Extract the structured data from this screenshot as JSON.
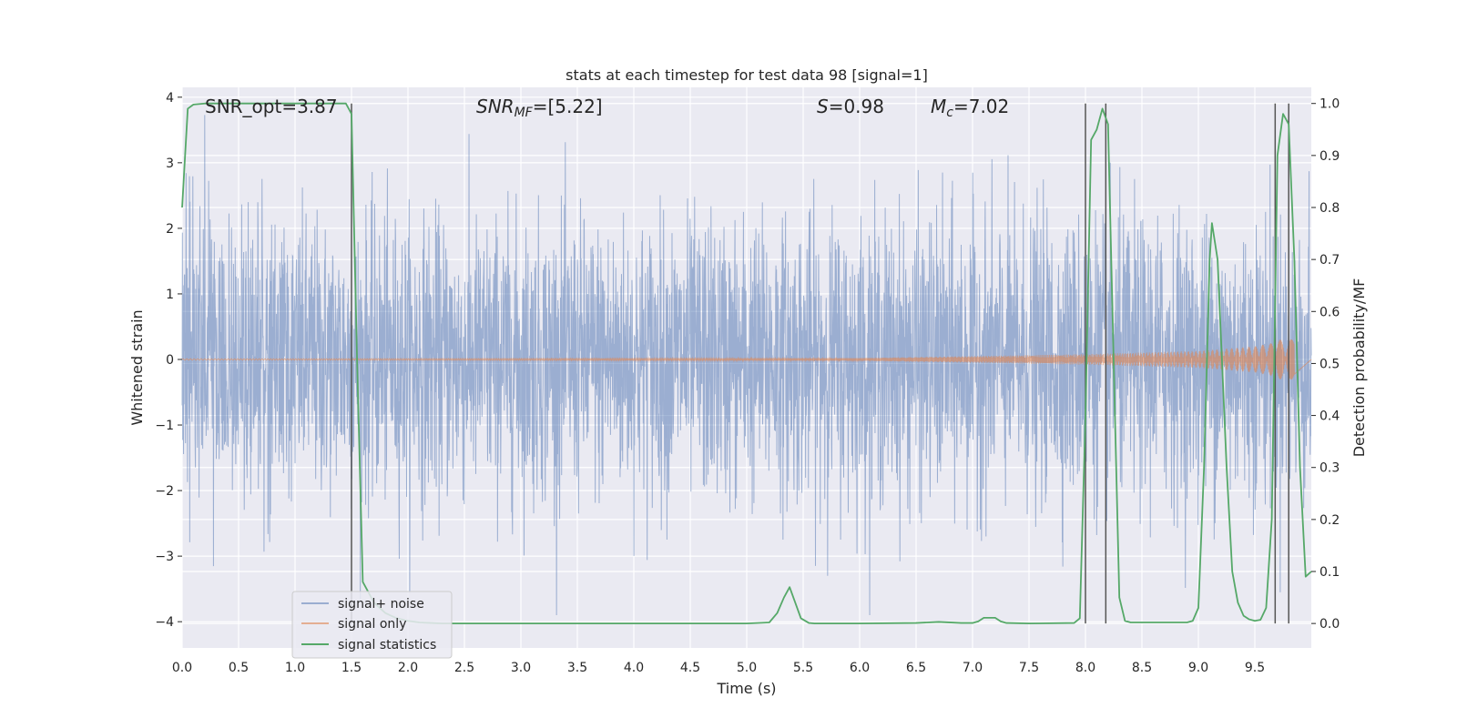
{
  "chart_data": {
    "type": "line",
    "title": "stats at each timestep for test data 98 [signal=1]",
    "xlabel": "Time (s)",
    "ylabel": "Whitened strain",
    "y2label": "Detection probability/MF",
    "xlim": [
      0,
      10
    ],
    "ylim": [
      -4.4,
      4.15
    ],
    "y2lim": [
      -0.047,
      1.031
    ],
    "xticks": [
      "0.0",
      "0.5",
      "1.0",
      "1.5",
      "2.0",
      "2.5",
      "3.0",
      "3.5",
      "4.0",
      "4.5",
      "5.0",
      "5.5",
      "6.0",
      "6.5",
      "7.0",
      "7.5",
      "8.0",
      "8.5",
      "9.0",
      "9.5"
    ],
    "xtick_values": [
      0,
      0.5,
      1,
      1.5,
      2,
      2.5,
      3,
      3.5,
      4,
      4.5,
      5,
      5.5,
      6,
      6.5,
      7,
      7.5,
      8,
      8.5,
      9,
      9.5
    ],
    "yticks": [
      "4",
      "3",
      "2",
      "1",
      "0",
      "−1",
      "−2",
      "−3",
      "−4"
    ],
    "ytick_values": [
      4,
      3,
      2,
      1,
      0,
      -1,
      -2,
      -3,
      -4
    ],
    "y2ticks": [
      "1.0",
      "0.9",
      "0.8",
      "0.7",
      "0.6",
      "0.5",
      "0.4",
      "0.3",
      "0.2",
      "0.1",
      "0.0"
    ],
    "y2tick_values": [
      1,
      0.9,
      0.8,
      0.7,
      0.6,
      0.5,
      0.4,
      0.3,
      0.2,
      0.1,
      0
    ],
    "grid": true,
    "legend_position": "lower-left",
    "annotations": {
      "snr_opt": "SNR_opt=3.87",
      "snr_mf_main": "SNR",
      "snr_mf_sub": "MF",
      "snr_mf_value": "=[5.22]",
      "s_main": "S",
      "s_value": "=0.98",
      "mc_main": "M",
      "mc_sub": "c",
      "mc_value": "=7.02"
    },
    "series": [
      {
        "name": "signal+ noise",
        "color": "#4c72b0",
        "axis": "left",
        "description_values": {
          "sigma": 1.0,
          "range": [
            -3.9,
            3.95
          ]
        }
      },
      {
        "name": "signal only",
        "color": "#dd8452",
        "axis": "left",
        "amplitude_t": [
          0,
          6,
          7,
          8,
          9,
          9.5,
          9.65,
          9.75,
          9.85
        ],
        "amplitude_values": [
          0.01,
          0.02,
          0.05,
          0.08,
          0.13,
          0.2,
          0.25,
          0.32,
          0.3
        ]
      },
      {
        "name": "signal statistics",
        "color": "#55a868",
        "axis": "right",
        "x": [
          0.0,
          0.05,
          0.1,
          0.2,
          0.3,
          0.5,
          1.0,
          1.3,
          1.45,
          1.5,
          1.55,
          1.6,
          1.7,
          1.8,
          1.9,
          2.0,
          2.1,
          2.2,
          2.3,
          2.4,
          2.5,
          3.0,
          4.0,
          5.0,
          5.2,
          5.27,
          5.33,
          5.38,
          5.43,
          5.48,
          5.55,
          5.6,
          6.0,
          6.5,
          6.7,
          6.9,
          7.0,
          7.05,
          7.1,
          7.15,
          7.2,
          7.25,
          7.3,
          7.5,
          7.9,
          7.95,
          8.0,
          8.05,
          8.1,
          8.15,
          8.2,
          8.25,
          8.3,
          8.35,
          8.4,
          8.5,
          8.9,
          8.95,
          9.0,
          9.05,
          9.1,
          9.12,
          9.17,
          9.2,
          9.25,
          9.3,
          9.35,
          9.4,
          9.45,
          9.5,
          9.55,
          9.6,
          9.65,
          9.7,
          9.75,
          9.8,
          9.85,
          9.9,
          9.95,
          10.0
        ],
        "values": [
          0.8,
          0.99,
          0.998,
          1.0,
          1.0,
          1.0,
          1.0,
          1.0,
          1.0,
          0.98,
          0.5,
          0.08,
          0.04,
          0.02,
          0.01,
          0.005,
          0.002,
          0.001,
          0.0,
          0.0,
          0.0,
          0.0,
          0.0,
          0.0,
          0.002,
          0.02,
          0.05,
          0.07,
          0.04,
          0.01,
          0.001,
          0.0,
          0.0,
          0.001,
          0.003,
          0.001,
          0.001,
          0.004,
          0.011,
          0.011,
          0.011,
          0.004,
          0.001,
          0.0,
          0.001,
          0.01,
          0.4,
          0.93,
          0.95,
          0.99,
          0.96,
          0.5,
          0.05,
          0.005,
          0.002,
          0.002,
          0.002,
          0.005,
          0.03,
          0.3,
          0.7,
          0.77,
          0.7,
          0.55,
          0.3,
          0.1,
          0.04,
          0.015,
          0.008,
          0.005,
          0.007,
          0.03,
          0.2,
          0.9,
          0.98,
          0.96,
          0.7,
          0.3,
          0.09,
          0.1
        ]
      }
    ],
    "vertical_markers": [
      1.5,
      8.0,
      8.18,
      9.68,
      9.8
    ],
    "legend": [
      "signal+ noise",
      "signal only",
      "signal statistics"
    ]
  }
}
